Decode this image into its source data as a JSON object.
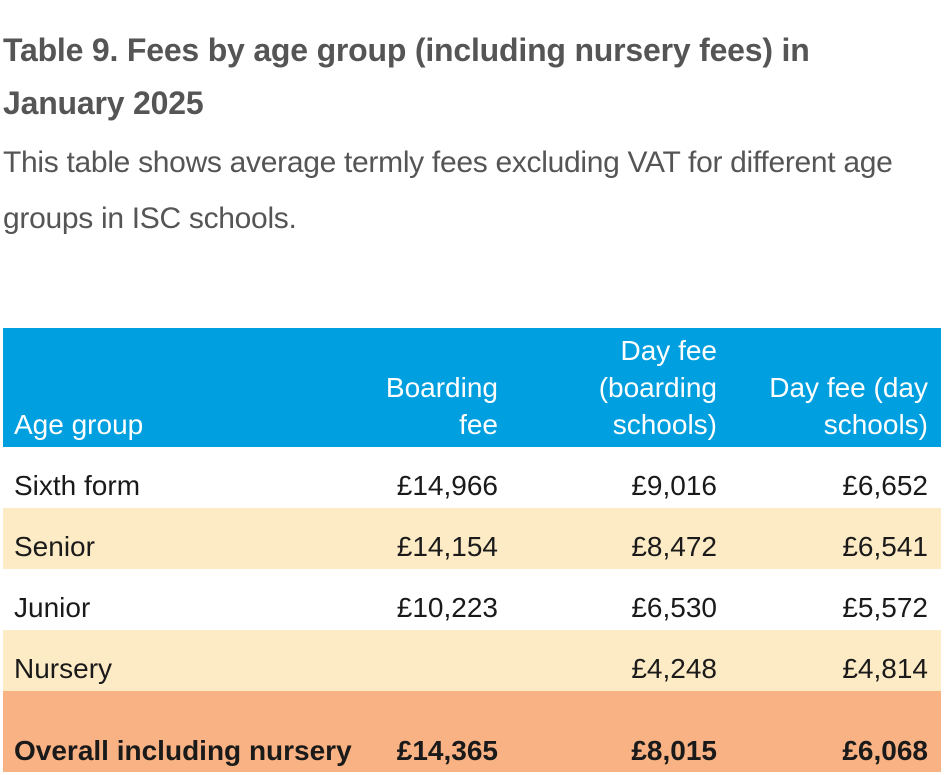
{
  "title": "Table 9. Fees by age group (including nursery fees) in January 2025",
  "subtitle": "This table shows average termly fees excluding VAT for different age groups in ISC schools.",
  "table": {
    "headers": [
      "Age group",
      "Boarding fee",
      "Day fee (boarding schools)",
      "Day fee (day schools)"
    ],
    "rows": [
      {
        "age_group": "Sixth form",
        "boarding_fee": "£14,966",
        "day_fee_boarding": "£9,016",
        "day_fee_day": "£6,652"
      },
      {
        "age_group": "Senior",
        "boarding_fee": "£14,154",
        "day_fee_boarding": "£8,472",
        "day_fee_day": "£6,541"
      },
      {
        "age_group": "Junior",
        "boarding_fee": "£10,223",
        "day_fee_boarding": "£6,530",
        "day_fee_day": "£5,572"
      },
      {
        "age_group": "Nursery",
        "boarding_fee": "",
        "day_fee_boarding": "£4,248",
        "day_fee_day": "£4,814"
      }
    ],
    "total": {
      "age_group": "Overall including nursery",
      "boarding_fee": "£14,365",
      "day_fee_boarding": "£8,015",
      "day_fee_day": "£6,068"
    }
  },
  "colors": {
    "header_background": "#009fdf",
    "header_text": "#ffffff",
    "alternate_row_background": "#fdebc5",
    "total_row_background": "#f9b283",
    "title_text": "#555555"
  }
}
